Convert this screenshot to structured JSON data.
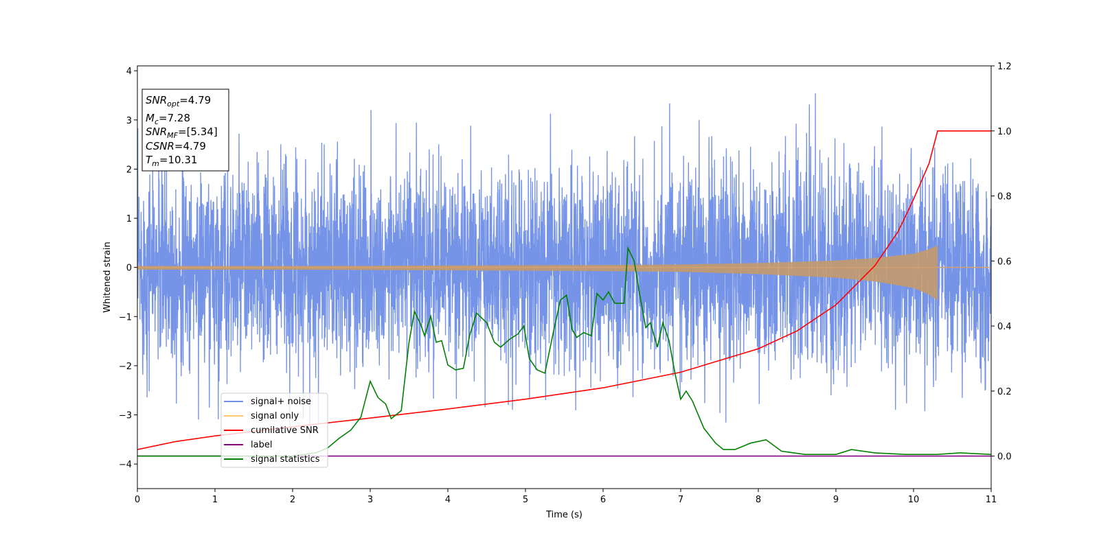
{
  "chart_data": {
    "type": "line",
    "xlabel": "Time (s)",
    "ylabel": "Whitened strain",
    "xlim": [
      0,
      11
    ],
    "ylim": [
      -4.5,
      4.1
    ],
    "y2lim": [
      -0.1,
      1.2
    ],
    "x_ticks": [
      "0",
      "1",
      "2",
      "3",
      "4",
      "5",
      "6",
      "7",
      "8",
      "9",
      "10",
      "11"
    ],
    "y_ticks": [
      "−4",
      "−3",
      "−2",
      "−1",
      "0",
      "1",
      "2",
      "3",
      "4"
    ],
    "y2_ticks": [
      "0.0",
      "0.2",
      "0.4",
      "0.6",
      "0.8",
      "1.0",
      "1.2"
    ],
    "grid": false,
    "legend_position": "lower-left",
    "info_box": {
      "position": "top-left",
      "lines": [
        {
          "var": "SNR",
          "sub": "opt",
          "value": "=4.79"
        },
        {
          "var": "M",
          "sub": "c",
          "value": "=7.28"
        },
        {
          "var": "SNR",
          "sub": "MF",
          "value": "=[5.34]"
        },
        {
          "var": "CSNR",
          "sub": "",
          "value": "=4.79"
        },
        {
          "var": "T",
          "sub": "m",
          "value": "=10.31"
        }
      ]
    },
    "series": [
      {
        "name": "signal+ noise",
        "axis": "left",
        "color": "#6f8ee6",
        "style": "dense noise",
        "noise_std": 1.0,
        "envelope_max": 3.7,
        "envelope_min": -4.15,
        "x_range": [
          0,
          11
        ]
      },
      {
        "name": "signal only",
        "axis": "left",
        "color": "#ffc66e",
        "style": "chirp",
        "merger_time": 10.31,
        "end_time": 11,
        "envelope_x": [
          0,
          2,
          4,
          6,
          7,
          8,
          9,
          9.5,
          10,
          10.2,
          10.31
        ],
        "envelope_amp": [
          0.03,
          0.03,
          0.04,
          0.05,
          0.06,
          0.09,
          0.14,
          0.19,
          0.28,
          0.37,
          0.45
        ]
      },
      {
        "name": "cumilative SNR",
        "axis": "right",
        "color": "#ff0000",
        "x": [
          0,
          0.5,
          1,
          2,
          3,
          4,
          5,
          6,
          7,
          8,
          8.5,
          9,
          9.5,
          9.8,
          10.0,
          10.2,
          10.31,
          10.32,
          11
        ],
        "values": [
          0.02,
          0.045,
          0.062,
          0.09,
          0.117,
          0.145,
          0.175,
          0.21,
          0.258,
          0.33,
          0.385,
          0.465,
          0.585,
          0.69,
          0.79,
          0.9,
          1.0,
          1.0,
          1.0
        ]
      },
      {
        "name": "label",
        "axis": "right",
        "color": "#800080",
        "x": [
          0,
          11
        ],
        "values": [
          0.0,
          0.0
        ]
      },
      {
        "name": "signal statistics",
        "axis": "right",
        "color": "#008000",
        "x": [
          0,
          0.5,
          1,
          1.5,
          2,
          2.3,
          2.45,
          2.6,
          2.75,
          2.88,
          3.0,
          3.1,
          3.2,
          3.27,
          3.4,
          3.5,
          3.57,
          3.65,
          3.7,
          3.78,
          3.85,
          3.92,
          4.0,
          4.1,
          4.2,
          4.28,
          4.37,
          4.5,
          4.6,
          4.68,
          4.8,
          4.9,
          4.98,
          5.05,
          5.15,
          5.25,
          5.35,
          5.45,
          5.53,
          5.6,
          5.66,
          5.75,
          5.85,
          5.92,
          6.0,
          6.07,
          6.15,
          6.27,
          6.32,
          6.4,
          6.47,
          6.55,
          6.61,
          6.7,
          6.77,
          6.85,
          6.93,
          7.0,
          7.07,
          7.15,
          7.3,
          7.45,
          7.55,
          7.7,
          7.9,
          8.1,
          8.3,
          8.6,
          9.0,
          9.2,
          9.5,
          9.9,
          10.3,
          10.6,
          11
        ],
        "values": [
          0.0,
          0.0,
          0.0,
          0.0,
          0.0,
          0.01,
          0.025,
          0.055,
          0.08,
          0.12,
          0.23,
          0.18,
          0.16,
          0.115,
          0.14,
          0.35,
          0.445,
          0.405,
          0.37,
          0.43,
          0.35,
          0.355,
          0.28,
          0.265,
          0.27,
          0.37,
          0.44,
          0.41,
          0.35,
          0.335,
          0.36,
          0.375,
          0.4,
          0.3,
          0.265,
          0.255,
          0.37,
          0.48,
          0.495,
          0.39,
          0.365,
          0.38,
          0.37,
          0.5,
          0.48,
          0.505,
          0.47,
          0.47,
          0.64,
          0.6,
          0.5,
          0.395,
          0.41,
          0.335,
          0.41,
          0.355,
          0.25,
          0.175,
          0.2,
          0.17,
          0.085,
          0.04,
          0.02,
          0.02,
          0.04,
          0.05,
          0.015,
          0.005,
          0.005,
          0.02,
          0.01,
          0.005,
          0.005,
          0.01,
          0.005
        ]
      }
    ]
  }
}
